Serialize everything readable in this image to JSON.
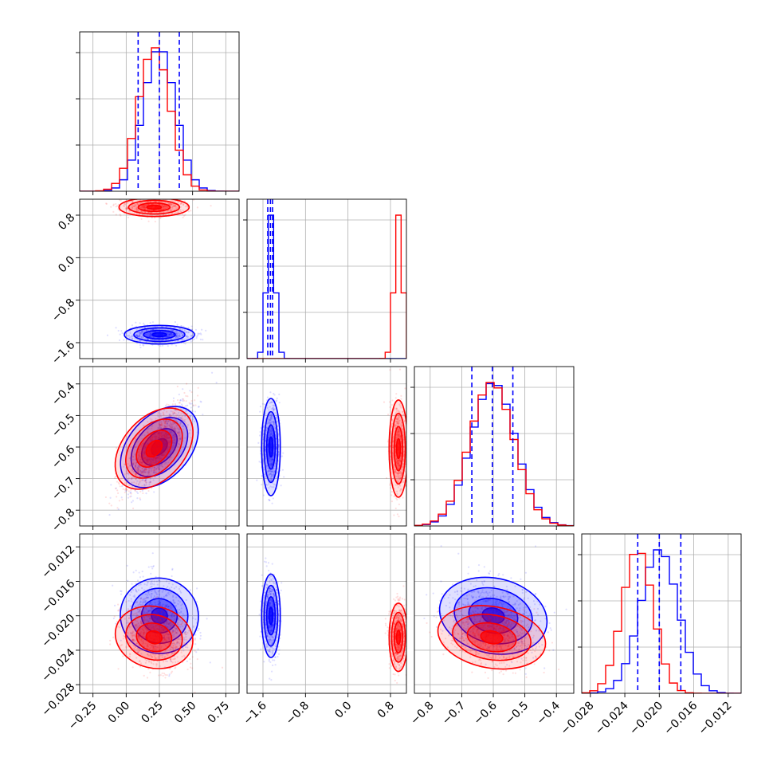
{
  "chart_data": {
    "type": "scatter",
    "title": "",
    "layout": "corner plot (triangle of 1-D histograms and 2-D density panels)",
    "grid": true,
    "legend": "none",
    "colors": {
      "series_a": "#0000ff",
      "series_b": "#ff0000",
      "quantile_lines": "#0000ff"
    },
    "series": [
      {
        "color": "#0000ff",
        "center": [
          0.25,
          -1.45,
          -0.6,
          -0.02
        ],
        "spread": [
          0.12,
          0.08,
          0.07,
          0.0022
        ]
      },
      {
        "color": "#ff0000",
        "center": [
          0.21,
          0.95,
          -0.605,
          -0.0225
        ],
        "spread": [
          0.12,
          0.08,
          0.07,
          0.0018
        ]
      }
    ],
    "parameters": [
      {
        "range": [
          -0.35,
          0.85
        ],
        "ticks": [
          -0.25,
          0.0,
          0.25,
          0.5,
          0.75
        ],
        "tick_labels": [
          "−0.25",
          "0.00",
          "0.25",
          "0.50",
          "0.75"
        ],
        "quantiles": [
          0.09,
          0.25,
          0.4
        ]
      },
      {
        "range": [
          -1.9,
          1.1
        ],
        "ticks": [
          -1.6,
          -0.8,
          0.0,
          0.8
        ],
        "tick_labels": [
          "−1.6",
          "−0.8",
          "0.0",
          "0.8"
        ],
        "quantiles": [
          -1.51,
          -1.46,
          -1.42
        ]
      },
      {
        "range": [
          -0.85,
          -0.345
        ],
        "ticks": [
          -0.8,
          -0.7,
          -0.6,
          -0.5,
          -0.4
        ],
        "tick_labels": [
          "−0.8",
          "−0.7",
          "−0.6",
          "−0.5",
          "−0.4"
        ],
        "quantiles": [
          -0.668,
          -0.603,
          -0.538
        ]
      },
      {
        "range": [
          -0.029,
          -0.0105
        ],
        "ticks": [
          -0.028,
          -0.024,
          -0.02,
          -0.016,
          -0.012
        ],
        "tick_labels": [
          "−0.028",
          "−0.024",
          "−0.020",
          "−0.016",
          "−0.012"
        ],
        "quantiles": [
          -0.0225,
          -0.02,
          -0.0175
        ]
      }
    ],
    "correlations": {
      "0-1": [
        0.0,
        0.0
      ],
      "0-2": [
        0.8,
        0.8
      ],
      "0-3": [
        -0.25,
        -0.25
      ],
      "1-2": [
        0.0,
        0.0
      ],
      "1-3": [
        0.0,
        0.0
      ],
      "2-3": [
        -0.25,
        -0.25
      ]
    }
  }
}
